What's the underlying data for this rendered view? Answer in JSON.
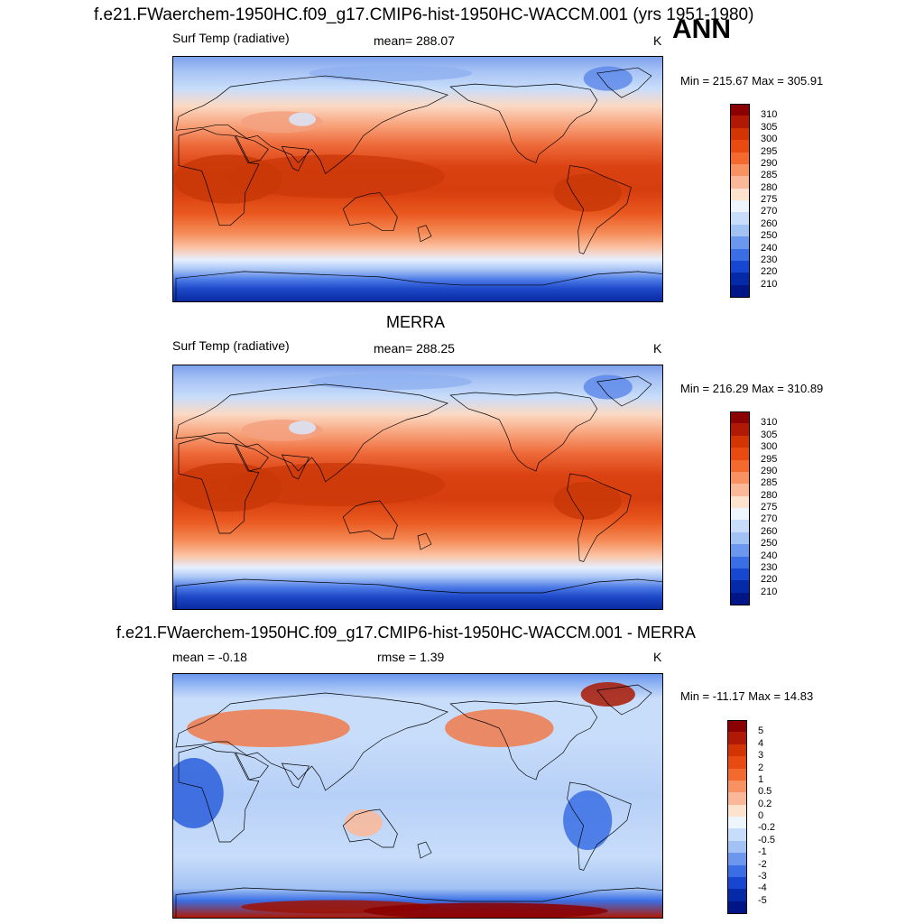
{
  "header": {
    "title": "f.e21.FWaerchem-1950HC.f09_g17.CMIP6-hist-1950HC-WACCM.001 (yrs 1951-1980)",
    "season": "ANN"
  },
  "panels": [
    {
      "title": "",
      "left_label": "Surf Temp (radiative)",
      "center_label": "mean= 288.07",
      "units": "K",
      "minmax": "Min = 215.67 Max = 305.91",
      "colorbar": {
        "labels": [
          "310",
          "305",
          "300",
          "295",
          "290",
          "285",
          "280",
          "275",
          "270",
          "260",
          "250",
          "240",
          "230",
          "220",
          "210"
        ],
        "colors": [
          "#8b0000",
          "#b01a04",
          "#d33404",
          "#e94a12",
          "#f4692d",
          "#f89263",
          "#fbb898",
          "#fde2cd",
          "#eef5fd",
          "#c8ddfa",
          "#a2c2f3",
          "#6b98ee",
          "#3a6ee4",
          "#1746d0",
          "#052aa8",
          "#001686"
        ]
      },
      "field": "temperature"
    },
    {
      "title": "MERRA",
      "left_label": "Surf Temp (radiative)",
      "center_label": "mean= 288.25",
      "units": "K",
      "minmax": "Min = 216.29 Max = 310.89",
      "colorbar": {
        "labels": [
          "310",
          "305",
          "300",
          "295",
          "290",
          "285",
          "280",
          "275",
          "270",
          "260",
          "250",
          "240",
          "230",
          "220",
          "210"
        ],
        "colors": [
          "#8b0000",
          "#b01a04",
          "#d33404",
          "#e94a12",
          "#f4692d",
          "#f89263",
          "#fbb898",
          "#fde2cd",
          "#eef5fd",
          "#c8ddfa",
          "#a2c2f3",
          "#6b98ee",
          "#3a6ee4",
          "#1746d0",
          "#052aa8",
          "#001686"
        ]
      },
      "field": "temperature"
    },
    {
      "title": "f.e21.FWaerchem-1950HC.f09_g17.CMIP6-hist-1950HC-WACCM.001 - MERRA",
      "left_label": "mean =  -0.18",
      "center_label": "rmse =   1.39",
      "units": "K",
      "minmax": "Min = -11.17 Max =  14.83",
      "colorbar": {
        "labels": [
          "5",
          "4",
          "3",
          "2",
          "1",
          "0.5",
          "0.2",
          "0",
          "-0.2",
          "-0.5",
          "-1",
          "-2",
          "-3",
          "-4",
          "-5"
        ],
        "colors": [
          "#8b0000",
          "#b01a04",
          "#d33404",
          "#e94a12",
          "#f4692d",
          "#f89263",
          "#fbb898",
          "#fde2cd",
          "#eef5fd",
          "#c8ddfa",
          "#a2c2f3",
          "#6b98ee",
          "#3a6ee4",
          "#1746d0",
          "#052aa8",
          "#001686"
        ]
      },
      "field": "difference"
    }
  ]
}
